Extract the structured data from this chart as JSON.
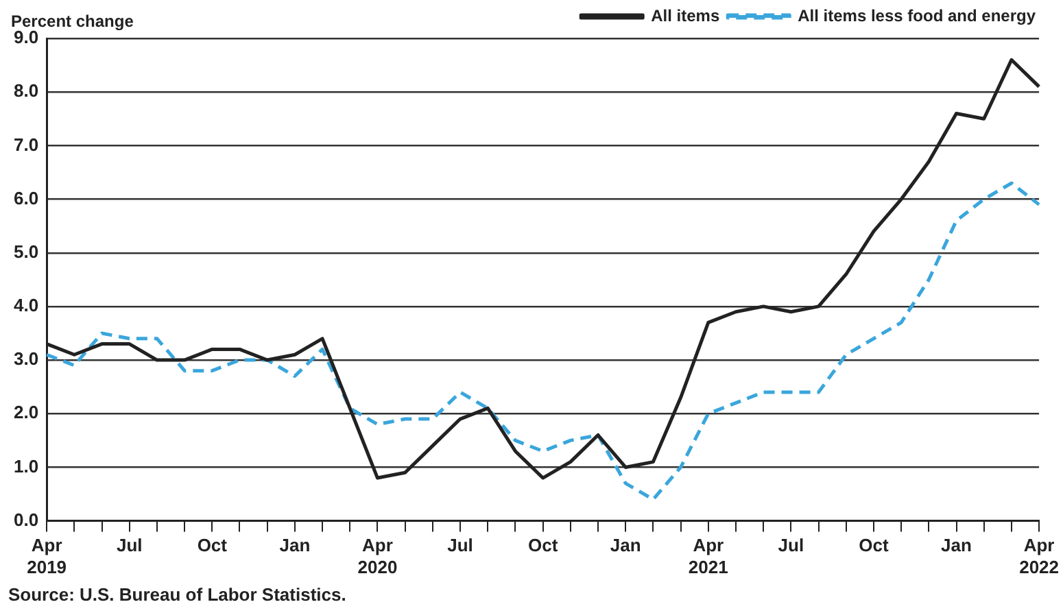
{
  "chart_data": {
    "type": "line",
    "ylabel": "Percent change",
    "categories": [
      "Apr 2019",
      null,
      null,
      "Jul",
      null,
      null,
      "Oct",
      null,
      null,
      "Jan",
      null,
      null,
      "Apr 2020",
      null,
      null,
      "Jul",
      null,
      null,
      "Oct",
      null,
      null,
      "Jan",
      null,
      null,
      "Apr 2021",
      null,
      null,
      "Jul",
      null,
      null,
      "Oct",
      null,
      null,
      "Jan",
      null,
      null,
      "Apr 2022"
    ],
    "series": [
      {
        "name": "All items",
        "color": "#222222",
        "line_style": "solid",
        "values": [
          3.3,
          3.1,
          3.3,
          3.3,
          3.0,
          3.0,
          3.2,
          3.2,
          3.0,
          3.1,
          3.4,
          2.1,
          0.8,
          0.9,
          1.4,
          1.9,
          2.1,
          1.3,
          0.8,
          1.1,
          1.6,
          1.0,
          1.1,
          2.3,
          3.7,
          3.9,
          4.0,
          3.9,
          4.0,
          4.6,
          5.4,
          6.0,
          6.7,
          7.6,
          7.5,
          8.6,
          8.1
        ]
      },
      {
        "name": "All items less food and energy",
        "color": "#3aa6dc",
        "line_style": "dashed",
        "values": [
          3.1,
          2.9,
          3.5,
          3.4,
          3.4,
          2.8,
          2.8,
          3.0,
          3.0,
          2.7,
          3.2,
          2.1,
          1.8,
          1.9,
          1.9,
          2.4,
          2.1,
          1.5,
          1.3,
          1.5,
          1.6,
          0.7,
          0.4,
          1.0,
          2.0,
          2.2,
          2.4,
          2.4,
          2.4,
          3.1,
          3.4,
          3.7,
          4.5,
          5.6,
          6.0,
          6.3,
          5.9
        ]
      }
    ],
    "ylim": [
      0,
      9
    ],
    "yticks": [
      {
        "value": 0,
        "label": "0.0"
      },
      {
        "value": 1,
        "label": "1.0"
      },
      {
        "value": 2,
        "label": "2.0"
      },
      {
        "value": 3,
        "label": "3.0"
      },
      {
        "value": 4,
        "label": "4.0"
      },
      {
        "value": 5,
        "label": "5.0"
      },
      {
        "value": 6,
        "label": "6.0"
      },
      {
        "value": 7,
        "label": "7.0"
      },
      {
        "value": 8,
        "label": "8.0"
      },
      {
        "value": 9,
        "label": "9.0"
      }
    ],
    "grid": "y",
    "legend": "top right",
    "marker": "none",
    "annotations": [
      "Source: U.S. Bureau of Labor Statistics."
    ]
  }
}
